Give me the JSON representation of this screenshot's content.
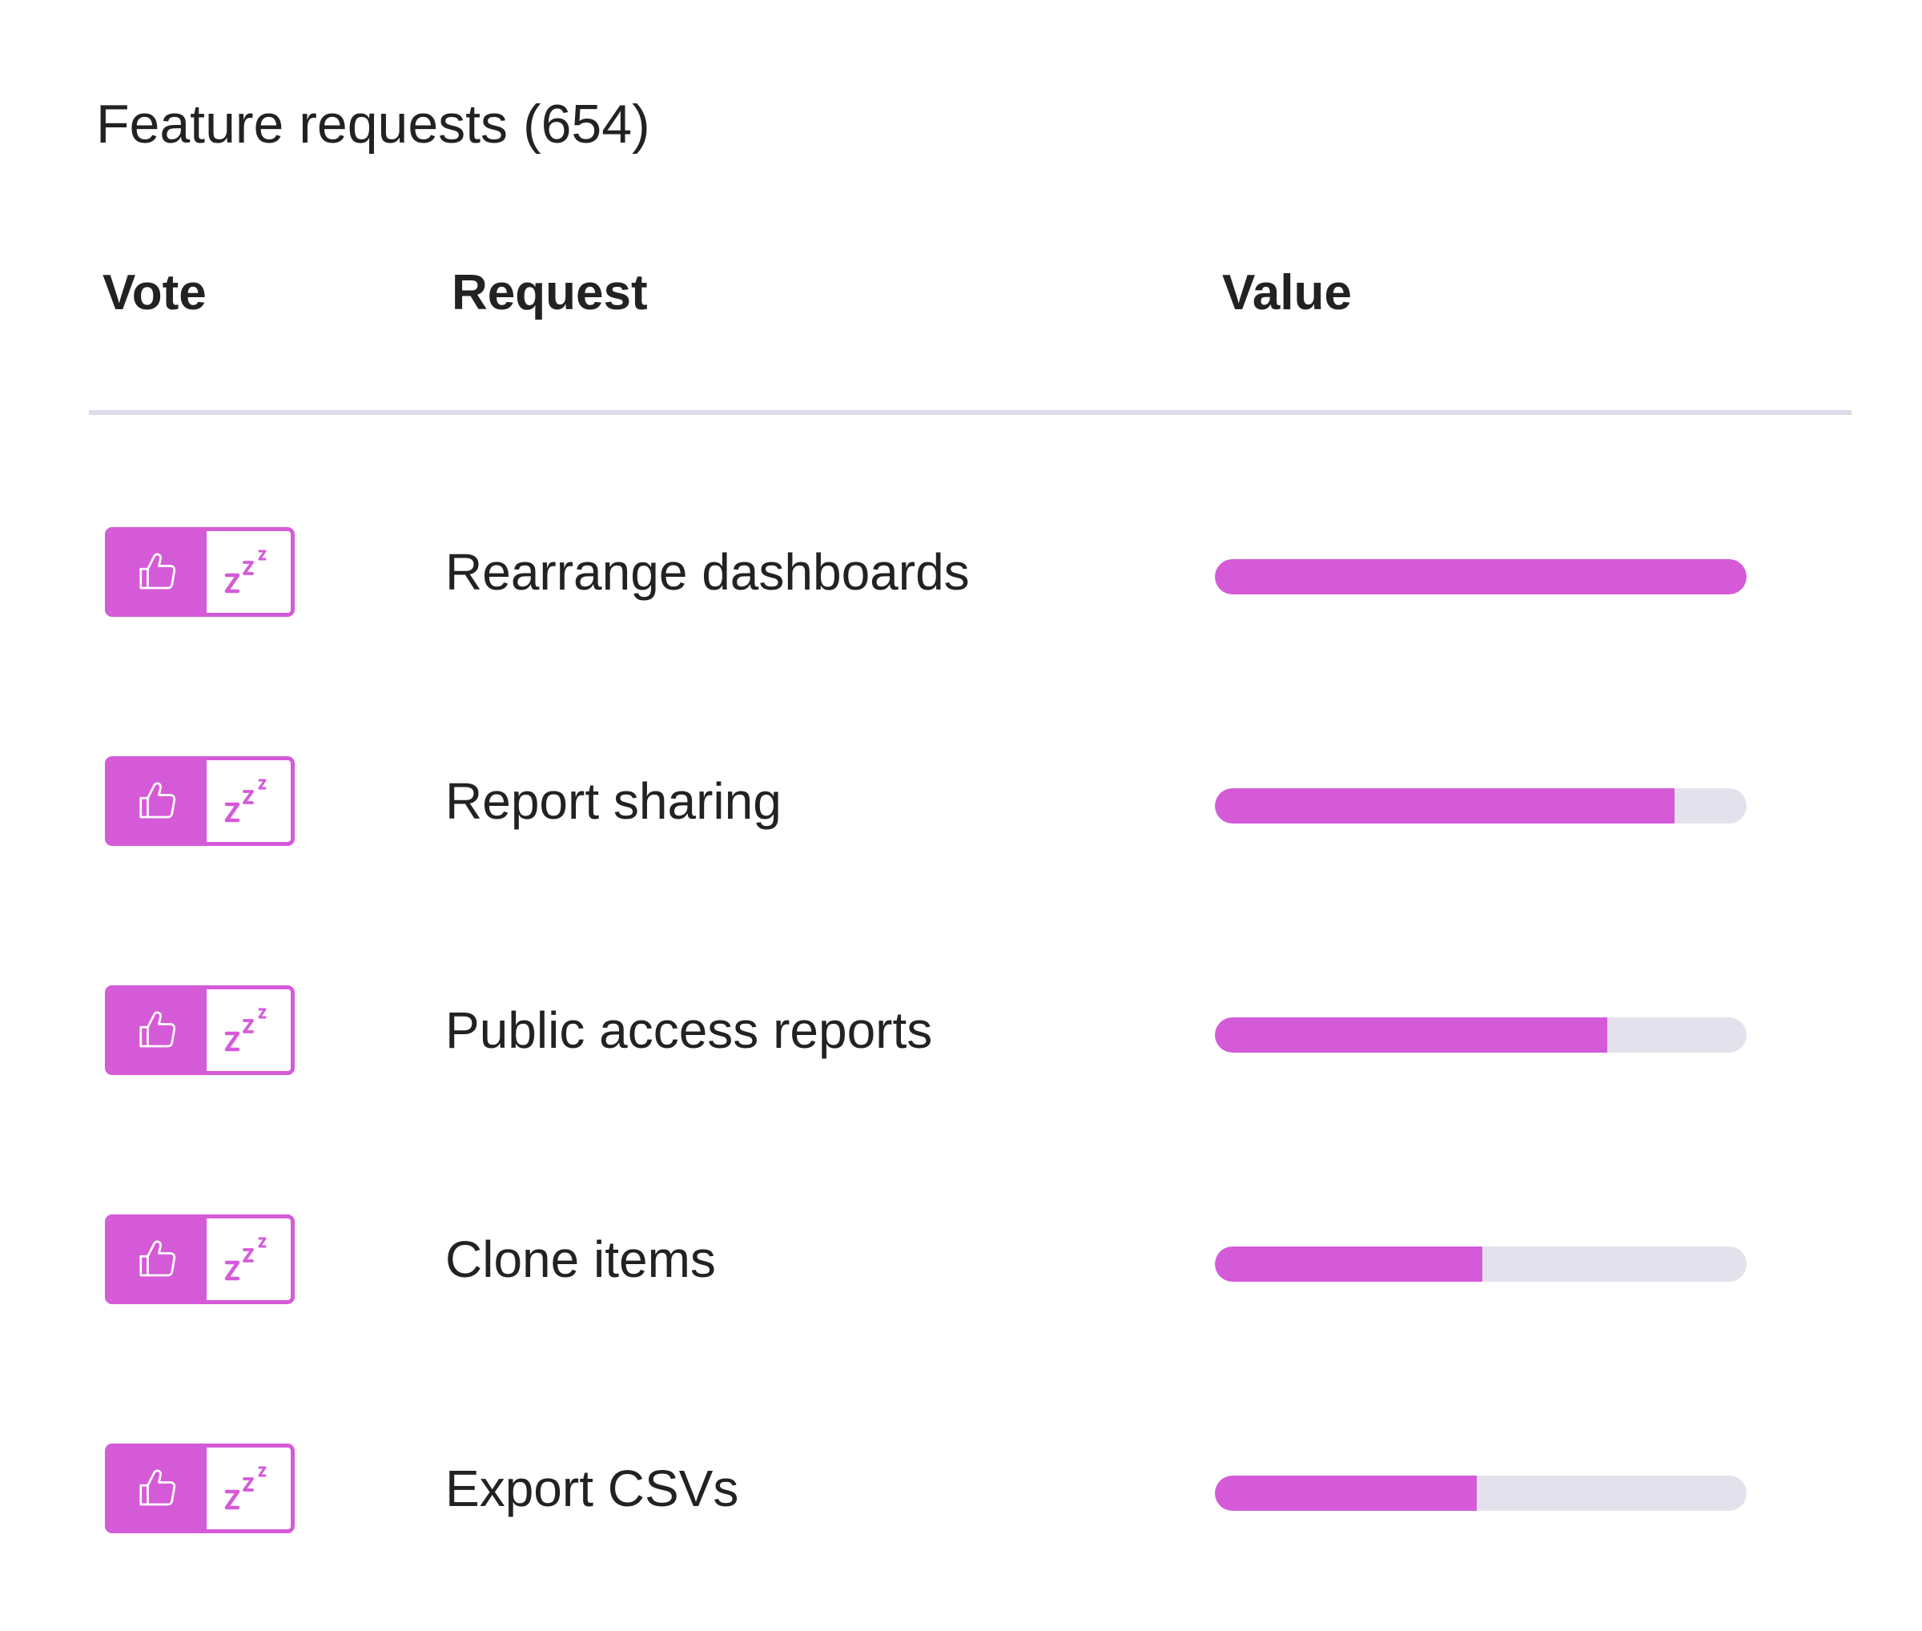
{
  "header": {
    "title": "Feature requests (654)"
  },
  "columns": {
    "vote": "Vote",
    "request": "Request",
    "value": "Value"
  },
  "colors": {
    "accent": "#d55ad8",
    "track": "#e3e2ec",
    "divider": "#dcdbe8",
    "text": "#222222"
  },
  "vote_icons": {
    "upvote": "thumbs-up-icon",
    "snooze": "snooze-zzz-icon"
  },
  "requests": [
    {
      "label": "Rearrange dashboards",
      "value_fraction": 1.0
    },
    {
      "label": "Report sharing",
      "value_fraction": 0.865
    },
    {
      "label": "Public access reports",
      "value_fraction": 0.738
    },
    {
      "label": "Clone items",
      "value_fraction": 0.503
    },
    {
      "label": "Export CSVs",
      "value_fraction": 0.492
    }
  ]
}
